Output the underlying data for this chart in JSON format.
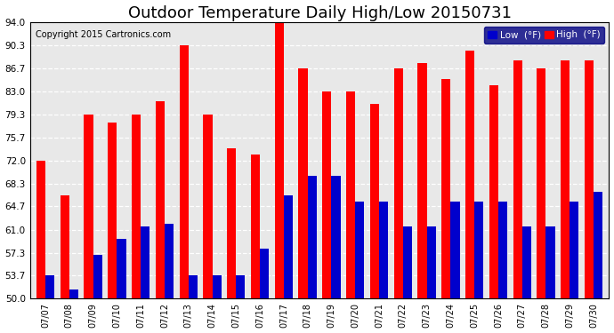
{
  "title": "Outdoor Temperature Daily High/Low 20150731",
  "copyright": "Copyright 2015 Cartronics.com",
  "dates": [
    "07/07",
    "07/08",
    "07/09",
    "07/10",
    "07/11",
    "07/12",
    "07/13",
    "07/14",
    "07/15",
    "07/16",
    "07/17",
    "07/18",
    "07/19",
    "07/20",
    "07/21",
    "07/22",
    "07/23",
    "07/24",
    "07/25",
    "07/26",
    "07/27",
    "07/28",
    "07/29",
    "07/30"
  ],
  "highs": [
    72.0,
    66.5,
    79.3,
    78.0,
    79.3,
    81.5,
    90.3,
    79.3,
    74.0,
    73.0,
    94.0,
    86.7,
    83.0,
    83.0,
    81.0,
    86.7,
    87.5,
    85.0,
    89.5,
    84.0,
    88.0,
    86.7,
    88.0,
    88.0
  ],
  "lows": [
    53.7,
    51.5,
    57.0,
    59.5,
    61.5,
    62.0,
    53.7,
    53.7,
    53.7,
    58.0,
    66.5,
    69.5,
    69.5,
    65.5,
    65.5,
    61.5,
    61.5,
    65.5,
    65.5,
    65.5,
    61.5,
    61.5,
    65.5,
    67.0
  ],
  "high_color": "#ff0000",
  "low_color": "#0000cc",
  "bg_color": "#ffffff",
  "plot_bg_color": "#e8e8e8",
  "grid_color": "#ffffff",
  "ymin": 50.0,
  "ymax": 94.0,
  "yticks": [
    50.0,
    53.7,
    57.3,
    61.0,
    64.7,
    68.3,
    72.0,
    75.7,
    79.3,
    83.0,
    86.7,
    90.3,
    94.0
  ],
  "title_fontsize": 13,
  "copyright_fontsize": 7,
  "legend_low_label": "Low  (°F)",
  "legend_high_label": "High  (°F)",
  "bar_width": 0.38
}
